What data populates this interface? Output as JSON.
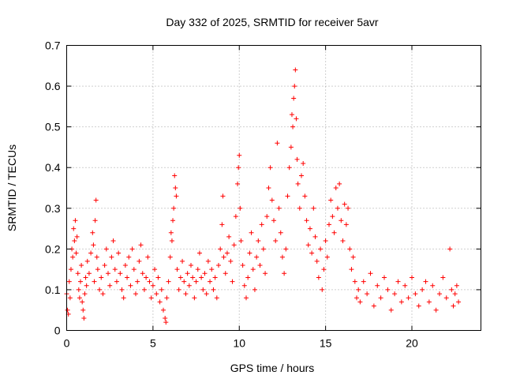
{
  "chart_data": {
    "type": "scatter",
    "title": "Day 332 of 2025, SRMTID for receiver 5avr",
    "xlabel": "GPS time / hours",
    "ylabel": "SRMTID / TECUs",
    "xlim": [
      0,
      24
    ],
    "ylim": [
      0,
      0.7
    ],
    "xticks": [
      0,
      5,
      10,
      15,
      20
    ],
    "xtick_labels": [
      "0",
      "5",
      "10",
      "15",
      "20"
    ],
    "yticks": [
      0,
      0.1,
      0.2,
      0.3,
      0.4,
      0.5,
      0.6,
      0.7
    ],
    "ytick_labels": [
      "0",
      "0.1",
      "0.2",
      "0.3",
      "0.4",
      "0.5",
      "0.6",
      "0.7"
    ],
    "grid": true,
    "marker": "+",
    "series": [
      {
        "name": "SRMTID",
        "color": "#ff0000",
        "points": [
          [
            0.0,
            0.09
          ],
          [
            0.05,
            0.05
          ],
          [
            0.1,
            0.04
          ],
          [
            0.15,
            0.12
          ],
          [
            0.2,
            0.08
          ],
          [
            0.25,
            0.15
          ],
          [
            0.3,
            0.2
          ],
          [
            0.35,
            0.18
          ],
          [
            0.4,
            0.25
          ],
          [
            0.45,
            0.22
          ],
          [
            0.5,
            0.27
          ],
          [
            0.55,
            0.19
          ],
          [
            0.6,
            0.23
          ],
          [
            0.65,
            0.14
          ],
          [
            0.7,
            0.1
          ],
          [
            0.75,
            0.08
          ],
          [
            0.8,
            0.12
          ],
          [
            0.85,
            0.16
          ],
          [
            0.9,
            0.07
          ],
          [
            0.95,
            0.05
          ],
          [
            1.0,
            0.03
          ],
          [
            1.05,
            0.09
          ],
          [
            1.1,
            0.13
          ],
          [
            1.15,
            0.11
          ],
          [
            1.2,
            0.17
          ],
          [
            1.3,
            0.14
          ],
          [
            1.4,
            0.19
          ],
          [
            1.5,
            0.24
          ],
          [
            1.55,
            0.21
          ],
          [
            1.6,
            0.12
          ],
          [
            1.65,
            0.27
          ],
          [
            1.7,
            0.32
          ],
          [
            1.75,
            0.18
          ],
          [
            1.8,
            0.15
          ],
          [
            1.9,
            0.1
          ],
          [
            2.0,
            0.13
          ],
          [
            2.1,
            0.09
          ],
          [
            2.2,
            0.16
          ],
          [
            2.3,
            0.2
          ],
          [
            2.4,
            0.14
          ],
          [
            2.5,
            0.11
          ],
          [
            2.6,
            0.18
          ],
          [
            2.7,
            0.22
          ],
          [
            2.8,
            0.15
          ],
          [
            2.9,
            0.12
          ],
          [
            3.0,
            0.19
          ],
          [
            3.1,
            0.14
          ],
          [
            3.2,
            0.1
          ],
          [
            3.3,
            0.08
          ],
          [
            3.4,
            0.16
          ],
          [
            3.5,
            0.13
          ],
          [
            3.6,
            0.18
          ],
          [
            3.7,
            0.11
          ],
          [
            3.8,
            0.2
          ],
          [
            3.9,
            0.15
          ],
          [
            4.0,
            0.09
          ],
          [
            4.1,
            0.12
          ],
          [
            4.2,
            0.17
          ],
          [
            4.3,
            0.21
          ],
          [
            4.4,
            0.14
          ],
          [
            4.5,
            0.1
          ],
          [
            4.6,
            0.13
          ],
          [
            4.7,
            0.18
          ],
          [
            4.8,
            0.12
          ],
          [
            4.9,
            0.08
          ],
          [
            5.0,
            0.11
          ],
          [
            5.1,
            0.15
          ],
          [
            5.2,
            0.09
          ],
          [
            5.3,
            0.13
          ],
          [
            5.4,
            0.07
          ],
          [
            5.5,
            0.1
          ],
          [
            5.6,
            0.05
          ],
          [
            5.7,
            0.03
          ],
          [
            5.75,
            0.02
          ],
          [
            5.8,
            0.08
          ],
          [
            5.9,
            0.12
          ],
          [
            6.0,
            0.18
          ],
          [
            6.05,
            0.24
          ],
          [
            6.1,
            0.22
          ],
          [
            6.15,
            0.27
          ],
          [
            6.2,
            0.3
          ],
          [
            6.25,
            0.38
          ],
          [
            6.3,
            0.35
          ],
          [
            6.35,
            0.33
          ],
          [
            6.4,
            0.15
          ],
          [
            6.5,
            0.1
          ],
          [
            6.6,
            0.13
          ],
          [
            6.7,
            0.17
          ],
          [
            6.8,
            0.12
          ],
          [
            6.9,
            0.09
          ],
          [
            7.0,
            0.14
          ],
          [
            7.1,
            0.11
          ],
          [
            7.2,
            0.16
          ],
          [
            7.3,
            0.13
          ],
          [
            7.4,
            0.08
          ],
          [
            7.5,
            0.12
          ],
          [
            7.6,
            0.15
          ],
          [
            7.7,
            0.19
          ],
          [
            7.8,
            0.13
          ],
          [
            7.9,
            0.1
          ],
          [
            8.0,
            0.14
          ],
          [
            8.1,
            0.09
          ],
          [
            8.2,
            0.17
          ],
          [
            8.3,
            0.12
          ],
          [
            8.4,
            0.15
          ],
          [
            8.5,
            0.1
          ],
          [
            8.6,
            0.13
          ],
          [
            8.7,
            0.08
          ],
          [
            8.8,
            0.16
          ],
          [
            8.9,
            0.2
          ],
          [
            9.0,
            0.26
          ],
          [
            9.05,
            0.33
          ],
          [
            9.1,
            0.18
          ],
          [
            9.2,
            0.14
          ],
          [
            9.3,
            0.19
          ],
          [
            9.4,
            0.23
          ],
          [
            9.5,
            0.17
          ],
          [
            9.6,
            0.12
          ],
          [
            9.7,
            0.21
          ],
          [
            9.8,
            0.28
          ],
          [
            9.9,
            0.36
          ],
          [
            9.95,
            0.4
          ],
          [
            10.0,
            0.43
          ],
          [
            10.05,
            0.3
          ],
          [
            10.1,
            0.22
          ],
          [
            10.2,
            0.16
          ],
          [
            10.3,
            0.11
          ],
          [
            10.4,
            0.08
          ],
          [
            10.5,
            0.13
          ],
          [
            10.6,
            0.19
          ],
          [
            10.7,
            0.24
          ],
          [
            10.8,
            0.15
          ],
          [
            10.9,
            0.1
          ],
          [
            11.0,
            0.18
          ],
          [
            11.1,
            0.22
          ],
          [
            11.2,
            0.16
          ],
          [
            11.3,
            0.26
          ],
          [
            11.4,
            0.2
          ],
          [
            11.5,
            0.14
          ],
          [
            11.6,
            0.28
          ],
          [
            11.7,
            0.35
          ],
          [
            11.8,
            0.4
          ],
          [
            11.9,
            0.32
          ],
          [
            12.0,
            0.27
          ],
          [
            12.1,
            0.22
          ],
          [
            12.2,
            0.46
          ],
          [
            12.3,
            0.3
          ],
          [
            12.4,
            0.24
          ],
          [
            12.5,
            0.18
          ],
          [
            12.6,
            0.14
          ],
          [
            12.7,
            0.2
          ],
          [
            12.8,
            0.33
          ],
          [
            12.9,
            0.4
          ],
          [
            13.0,
            0.45
          ],
          [
            13.05,
            0.53
          ],
          [
            13.1,
            0.5
          ],
          [
            13.15,
            0.57
          ],
          [
            13.2,
            0.6
          ],
          [
            13.25,
            0.64
          ],
          [
            13.3,
            0.52
          ],
          [
            13.35,
            0.42
          ],
          [
            13.4,
            0.36
          ],
          [
            13.5,
            0.3
          ],
          [
            13.6,
            0.38
          ],
          [
            13.7,
            0.41
          ],
          [
            13.8,
            0.33
          ],
          [
            13.9,
            0.27
          ],
          [
            14.0,
            0.21
          ],
          [
            14.1,
            0.25
          ],
          [
            14.2,
            0.19
          ],
          [
            14.3,
            0.3
          ],
          [
            14.4,
            0.23
          ],
          [
            14.5,
            0.17
          ],
          [
            14.6,
            0.13
          ],
          [
            14.7,
            0.2
          ],
          [
            14.8,
            0.1
          ],
          [
            14.9,
            0.15
          ],
          [
            15.0,
            0.22
          ],
          [
            15.1,
            0.18
          ],
          [
            15.2,
            0.26
          ],
          [
            15.3,
            0.32
          ],
          [
            15.4,
            0.28
          ],
          [
            15.5,
            0.24
          ],
          [
            15.6,
            0.35
          ],
          [
            15.7,
            0.3
          ],
          [
            15.8,
            0.36
          ],
          [
            15.9,
            0.27
          ],
          [
            16.0,
            0.22
          ],
          [
            16.1,
            0.31
          ],
          [
            16.2,
            0.26
          ],
          [
            16.3,
            0.3
          ],
          [
            16.4,
            0.2
          ],
          [
            16.5,
            0.15
          ],
          [
            16.6,
            0.18
          ],
          [
            16.7,
            0.12
          ],
          [
            16.8,
            0.08
          ],
          [
            16.9,
            0.1
          ],
          [
            17.0,
            0.07
          ],
          [
            17.2,
            0.12
          ],
          [
            17.4,
            0.09
          ],
          [
            17.6,
            0.14
          ],
          [
            17.8,
            0.06
          ],
          [
            18.0,
            0.11
          ],
          [
            18.2,
            0.08
          ],
          [
            18.4,
            0.13
          ],
          [
            18.6,
            0.1
          ],
          [
            18.8,
            0.05
          ],
          [
            19.0,
            0.09
          ],
          [
            19.2,
            0.12
          ],
          [
            19.4,
            0.07
          ],
          [
            19.6,
            0.11
          ],
          [
            19.8,
            0.08
          ],
          [
            20.0,
            0.13
          ],
          [
            20.2,
            0.09
          ],
          [
            20.4,
            0.06
          ],
          [
            20.6,
            0.1
          ],
          [
            20.8,
            0.12
          ],
          [
            21.0,
            0.07
          ],
          [
            21.2,
            0.11
          ],
          [
            21.4,
            0.05
          ],
          [
            21.6,
            0.09
          ],
          [
            21.8,
            0.13
          ],
          [
            22.0,
            0.08
          ],
          [
            22.2,
            0.2
          ],
          [
            22.3,
            0.1
          ],
          [
            22.4,
            0.06
          ],
          [
            22.5,
            0.09
          ],
          [
            22.6,
            0.11
          ],
          [
            22.7,
            0.07
          ]
        ]
      }
    ]
  }
}
